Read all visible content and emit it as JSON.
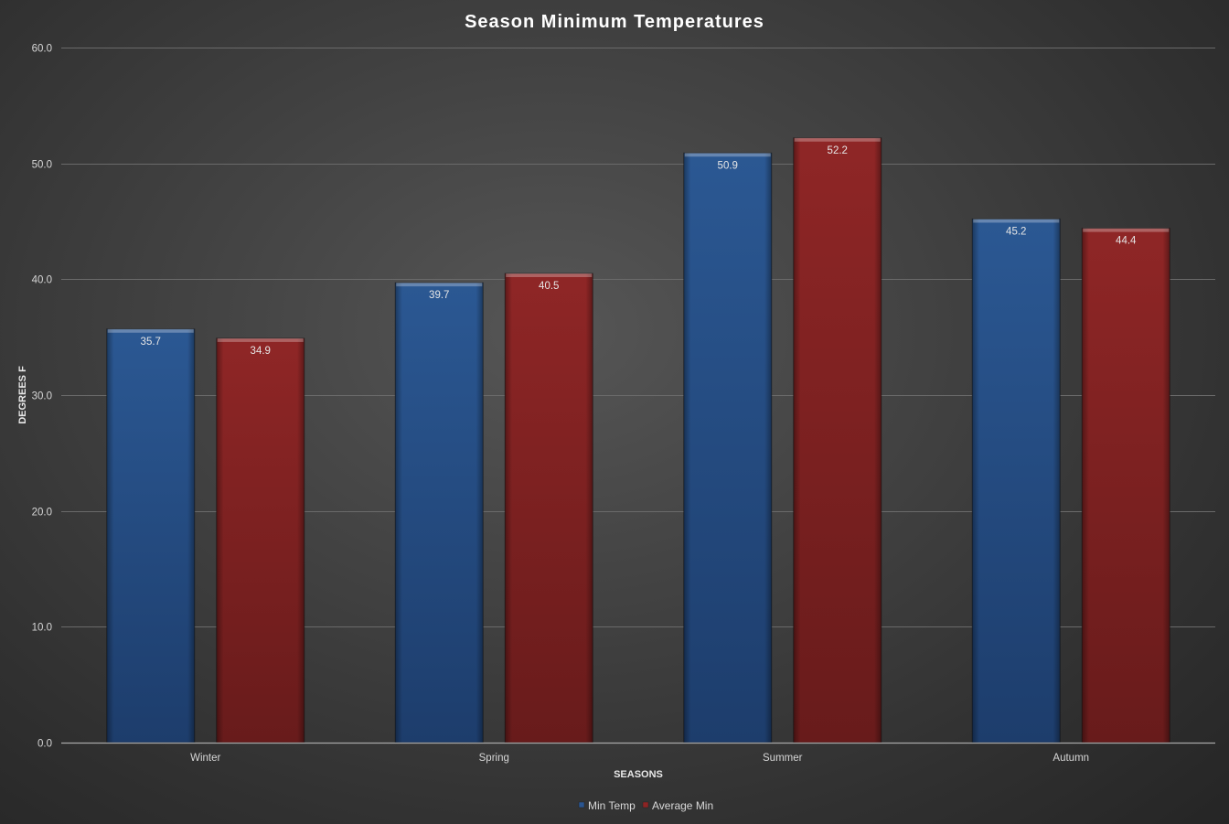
{
  "chart_data": {
    "type": "bar",
    "title": "Season Minimum Temperatures",
    "xlabel": "SEASONS",
    "ylabel": "DEGREES F",
    "categories": [
      "Winter",
      "Spring",
      "Summer",
      "Autumn"
    ],
    "series": [
      {
        "name": "Min Temp",
        "values": [
          35.7,
          39.7,
          50.9,
          45.2
        ],
        "color": "#2a5590"
      },
      {
        "name": "Average Min",
        "values": [
          34.9,
          40.5,
          52.2,
          44.4
        ],
        "color": "#8c2424"
      }
    ],
    "ylim": [
      0,
      60
    ],
    "yticks": [
      0,
      10,
      20,
      30,
      40,
      50,
      60
    ],
    "ytick_labels": [
      "0.0",
      "10.0",
      "20.0",
      "30.0",
      "40.0",
      "50.0",
      "60.0"
    ],
    "data_labels": [
      [
        "35.7",
        "39.7",
        "50.9",
        "45.2"
      ],
      [
        "34.9",
        "40.5",
        "52.2",
        "44.4"
      ]
    ],
    "grid": true,
    "legend_position": "bottom"
  }
}
